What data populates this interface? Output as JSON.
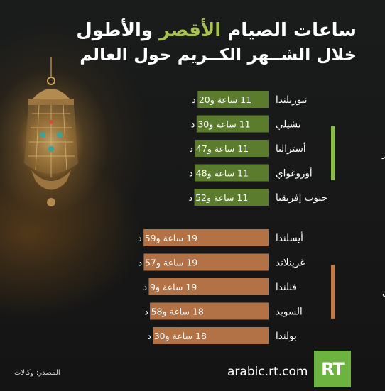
{
  "title": {
    "line1_part1": "ساعات الصيام ",
    "line1_highlight": "الأقصر",
    "line1_part2": " والأطول",
    "line2": "خلال الشــهر الكــريم حول العالم"
  },
  "chart_data": {
    "type": "bar",
    "orientation": "horizontal",
    "unit": "hours",
    "groups": [
      {
        "name": "الأقصر",
        "color": "#5b7c2d",
        "accent": "#8cbf3f",
        "items": [
          {
            "country": "نيوزيلندا",
            "label": "11 ساعة و20 د",
            "value": 11.33
          },
          {
            "country": "تشيلي",
            "label": "11 ساعة و30 د",
            "value": 11.5
          },
          {
            "country": "أستراليا",
            "label": "11 ساعة و47 د",
            "value": 11.78
          },
          {
            "country": "أوروغواي",
            "label": "11 ساعة و48 د",
            "value": 11.8
          },
          {
            "country": "جنوب إفريقيا",
            "label": "11 ساعة و52 د",
            "value": 11.87
          }
        ]
      },
      {
        "name": "الأطول",
        "color": "#b27245",
        "accent": "#c07a48",
        "items": [
          {
            "country": "أيسلندا",
            "label": "19 ساعة و59 د",
            "value": 19.98
          },
          {
            "country": "غرينلاند",
            "label": "19 ساعة و57 د",
            "value": 19.95
          },
          {
            "country": "فنلندا",
            "label": "19 ساعة و9 د",
            "value": 19.15
          },
          {
            "country": "السويد",
            "label": "18 ساعة و58 د",
            "value": 18.97
          },
          {
            "country": "بولندا",
            "label": "18 ساعة و30 د",
            "value": 18.5
          }
        ]
      }
    ]
  },
  "footer": {
    "source": "المصدر: وكالات",
    "site": "arabic.rt.com",
    "logo": "RT"
  },
  "decor": {
    "lantern": "ramadan-lantern-icon"
  }
}
